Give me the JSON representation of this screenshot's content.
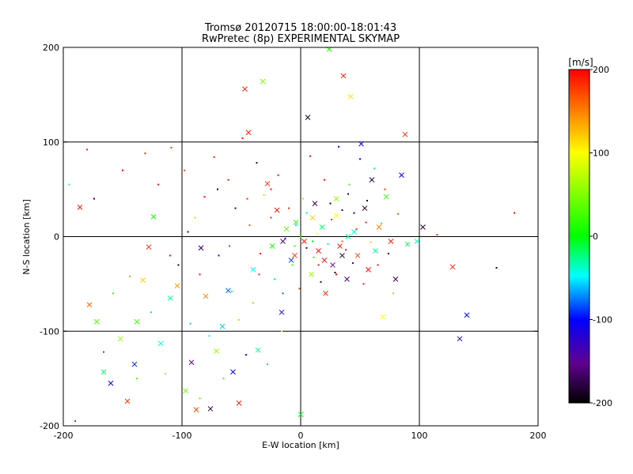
{
  "chart_data": {
    "type": "scatter",
    "title": "Tromsø 20120715 18:00:00-18:01:43",
    "subtitle": "RwPretec (8p) EXPERIMENTAL SKYMAP",
    "xlabel": "E-W location [km]",
    "ylabel": "N-S location [km]",
    "xlim": [
      -200,
      200
    ],
    "ylim": [
      -200,
      200
    ],
    "x_ticks": [
      -200,
      -100,
      0,
      100,
      200
    ],
    "y_ticks": [
      -200,
      -100,
      0,
      100,
      200
    ],
    "grid": true,
    "colorbar": {
      "label": "[m/s]",
      "range": [
        -200,
        200
      ],
      "ticks": [
        200,
        100,
        0,
        -100,
        -200
      ],
      "colormap": "rainbow: -200 black, -100 blue, 0 green, 100 yellow, 200 red"
    },
    "marker_types": [
      "x (large)",
      "dot (small)"
    ],
    "points": [
      [
        -186,
        31,
        "x",
        190
      ],
      [
        -178,
        -72,
        "x",
        160
      ],
      [
        -172,
        -90,
        "x",
        30
      ],
      [
        -166,
        -143,
        "x",
        -20
      ],
      [
        -160,
        -155,
        "x",
        -110
      ],
      [
        -152,
        -108,
        "x",
        60
      ],
      [
        -146,
        -174,
        "x",
        180
      ],
      [
        -140,
        -135,
        "x",
        -90
      ],
      [
        -138,
        -90,
        "x",
        20
      ],
      [
        -133,
        -46,
        "x",
        120
      ],
      [
        -128,
        -11,
        "x",
        185
      ],
      [
        -124,
        21,
        "x",
        10
      ],
      [
        -118,
        -113,
        "x",
        -40
      ],
      [
        -110,
        -65,
        "x",
        -30
      ],
      [
        -104,
        -52,
        "x",
        140
      ],
      [
        -97,
        -163,
        "x",
        40
      ],
      [
        -92,
        -133,
        "x",
        -150
      ],
      [
        -88,
        -183,
        "x",
        170
      ],
      [
        -84,
        -12,
        "x",
        -170
      ],
      [
        -80,
        -63,
        "x",
        150
      ],
      [
        -76,
        -182,
        "x",
        -180
      ],
      [
        -71,
        -121,
        "x",
        60
      ],
      [
        -66,
        -95,
        "x",
        -60
      ],
      [
        -61,
        -57,
        "x",
        -80
      ],
      [
        -57,
        -143,
        "x",
        -100
      ],
      [
        -52,
        -176,
        "x",
        190
      ],
      [
        -47,
        156,
        "x",
        195
      ],
      [
        -44,
        110,
        "x",
        190
      ],
      [
        -40,
        -35,
        "x",
        -50
      ],
      [
        -36,
        -120,
        "x",
        -30
      ],
      [
        -32,
        164,
        "x",
        50
      ],
      [
        -28,
        56,
        "x",
        180
      ],
      [
        -24,
        -10,
        "x",
        10
      ],
      [
        -20,
        28,
        "x",
        195
      ],
      [
        -16,
        -80,
        "x",
        -120
      ],
      [
        -12,
        8,
        "x",
        40
      ],
      [
        -8,
        -25,
        "x",
        -90
      ],
      [
        -4,
        15,
        "x",
        20
      ],
      [
        0,
        -188,
        "x",
        -10
      ],
      [
        3,
        -5,
        "x",
        190
      ],
      [
        6,
        126,
        "x",
        -185
      ],
      [
        9,
        -40,
        "x",
        60
      ],
      [
        12,
        35,
        "x",
        -170
      ],
      [
        15,
        -15,
        "x",
        195
      ],
      [
        18,
        10,
        "x",
        -20
      ],
      [
        21,
        -60,
        "x",
        180
      ],
      [
        24,
        198,
        "x",
        10
      ],
      [
        27,
        -30,
        "x",
        -150
      ],
      [
        30,
        22,
        "x",
        100
      ],
      [
        33,
        -10,
        "x",
        185
      ],
      [
        36,
        170,
        "x",
        190
      ],
      [
        39,
        -45,
        "x",
        -160
      ],
      [
        42,
        148,
        "x",
        110
      ],
      [
        45,
        5,
        "x",
        -40
      ],
      [
        48,
        -20,
        "x",
        170
      ],
      [
        51,
        98,
        "x",
        -110
      ],
      [
        54,
        30,
        "x",
        -190
      ],
      [
        57,
        -35,
        "x",
        195
      ],
      [
        60,
        60,
        "x",
        -180
      ],
      [
        63,
        -15,
        "x",
        -30
      ],
      [
        66,
        10,
        "x",
        150
      ],
      [
        69,
        -85,
        "x",
        100
      ],
      [
        72,
        42,
        "x",
        20
      ],
      [
        76,
        -5,
        "x",
        190
      ],
      [
        80,
        -45,
        "x",
        -170
      ],
      [
        85,
        65,
        "x",
        -100
      ],
      [
        88,
        108,
        "x",
        185
      ],
      [
        90,
        -8,
        "x",
        -20
      ],
      [
        98,
        -5,
        "x",
        -40
      ],
      [
        103,
        10,
        "x",
        -185
      ],
      [
        128,
        -32,
        "x",
        190
      ],
      [
        134,
        -108,
        "x",
        -110
      ],
      [
        140,
        -83,
        "x",
        -100
      ],
      [
        30,
        40,
        "x",
        60
      ],
      [
        40,
        0,
        "x",
        -30
      ],
      [
        -5,
        -20,
        "x",
        180
      ],
      [
        10,
        20,
        "x",
        120
      ],
      [
        -15,
        -5,
        "x",
        -160
      ],
      [
        20,
        -25,
        "x",
        200
      ],
      [
        35,
        -20,
        "x",
        -190
      ],
      [
        -180,
        92,
        ".",
        190
      ],
      [
        -174,
        40,
        ".",
        -180
      ],
      [
        -166,
        -122,
        ".",
        -80
      ],
      [
        -158,
        -60,
        ".",
        20
      ],
      [
        -150,
        70,
        ".",
        195
      ],
      [
        -144,
        -42,
        ".",
        140
      ],
      [
        -138,
        -150,
        ".",
        30
      ],
      [
        -131,
        88,
        ".",
        185
      ],
      [
        -126,
        -80,
        ".",
        -20
      ],
      [
        -120,
        55,
        ".",
        190
      ],
      [
        -114,
        -145,
        ".",
        60
      ],
      [
        -109,
        94,
        ".",
        180
      ],
      [
        -103,
        -30,
        ".",
        -185
      ],
      [
        -98,
        70,
        ".",
        170
      ],
      [
        -93,
        -92,
        ".",
        -60
      ],
      [
        -89,
        20,
        ".",
        120
      ],
      [
        -85,
        -171,
        ".",
        40
      ],
      [
        -81,
        42,
        ".",
        195
      ],
      [
        -77,
        -105,
        ".",
        -40
      ],
      [
        -73,
        84,
        ".",
        185
      ],
      [
        -69,
        -20,
        ".",
        -120
      ],
      [
        -65,
        -150,
        ".",
        20
      ],
      [
        -61,
        60,
        ".",
        190
      ],
      [
        -58,
        -58,
        ".",
        -30
      ],
      [
        -55,
        30,
        ".",
        -175
      ],
      [
        -52,
        -88,
        ".",
        60
      ],
      [
        -49,
        104,
        ".",
        195
      ],
      [
        -46,
        -125,
        ".",
        -100
      ],
      [
        -43,
        12,
        ".",
        170
      ],
      [
        -40,
        -70,
        ".",
        40
      ],
      [
        -37,
        78,
        ".",
        -180
      ],
      [
        -34,
        -18,
        ".",
        190
      ],
      [
        -31,
        44,
        ".",
        60
      ],
      [
        -28,
        -135,
        ".",
        -60
      ],
      [
        -25,
        20,
        ".",
        185
      ],
      [
        -22,
        -45,
        ".",
        -20
      ],
      [
        -19,
        65,
        ".",
        195
      ],
      [
        -16,
        -100,
        ".",
        100
      ],
      [
        -13,
        -2,
        ".",
        -140
      ],
      [
        -10,
        30,
        ".",
        180
      ],
      [
        -7,
        -30,
        ".",
        20
      ],
      [
        -4,
        12,
        ".",
        -60
      ],
      [
        -1,
        -55,
        ".",
        170
      ],
      [
        2,
        40,
        ".",
        60
      ],
      [
        5,
        -12,
        ".",
        -185
      ],
      [
        8,
        85,
        ".",
        195
      ],
      [
        11,
        -22,
        ".",
        20
      ],
      [
        14,
        3,
        ".",
        100
      ],
      [
        17,
        -48,
        ".",
        -170
      ],
      [
        20,
        60,
        ".",
        190
      ],
      [
        23,
        -8,
        ".",
        -30
      ],
      [
        26,
        18,
        ".",
        185
      ],
      [
        29,
        -38,
        ".",
        -190
      ],
      [
        32,
        95,
        ".",
        -120
      ],
      [
        35,
        28,
        ".",
        -185
      ],
      [
        38,
        -14,
        ".",
        195
      ],
      [
        41,
        55,
        ".",
        20
      ],
      [
        44,
        -28,
        ".",
        -160
      ],
      [
        47,
        8,
        ".",
        180
      ],
      [
        50,
        82,
        ".",
        -100
      ],
      [
        53,
        -50,
        ".",
        190
      ],
      [
        56,
        38,
        ".",
        -190
      ],
      [
        59,
        -6,
        ".",
        120
      ],
      [
        62,
        72,
        ".",
        -40
      ],
      [
        65,
        -30,
        ".",
        195
      ],
      [
        68,
        14,
        ".",
        -20
      ],
      [
        71,
        50,
        ".",
        180
      ],
      [
        74,
        -18,
        ".",
        -185
      ],
      [
        78,
        -60,
        ".",
        40
      ],
      [
        82,
        24,
        ".",
        160
      ],
      [
        -110,
        -20,
        ".",
        190
      ],
      [
        -95,
        5,
        ".",
        -170
      ],
      [
        -85,
        -40,
        ".",
        195
      ],
      [
        -70,
        50,
        ".",
        -190
      ],
      [
        -60,
        -10,
        ".",
        180
      ],
      [
        -45,
        40,
        ".",
        185
      ],
      [
        -35,
        -40,
        ".",
        190
      ],
      [
        -25,
        50,
        ".",
        195
      ],
      [
        -15,
        -60,
        ".",
        -80
      ],
      [
        0,
        0,
        ".",
        10
      ],
      [
        5,
        25,
        ".",
        -30
      ],
      [
        15,
        -30,
        ".",
        190
      ],
      [
        25,
        35,
        ".",
        -190
      ],
      [
        35,
        -5,
        ".",
        160
      ],
      [
        45,
        25,
        ".",
        -185
      ],
      [
        55,
        15,
        ".",
        190
      ],
      [
        30,
        -40,
        ".",
        195
      ],
      [
        40,
        45,
        ".",
        -180
      ],
      [
        -5,
        -10,
        ".",
        30
      ],
      [
        10,
        -5,
        ".",
        -10
      ],
      [
        115,
        2,
        ".",
        185
      ],
      [
        165,
        -33,
        ".",
        -190
      ],
      [
        180,
        25,
        ".",
        195
      ],
      [
        -195,
        55,
        ".",
        -40
      ],
      [
        -190,
        -195,
        ".",
        190
      ]
    ]
  }
}
